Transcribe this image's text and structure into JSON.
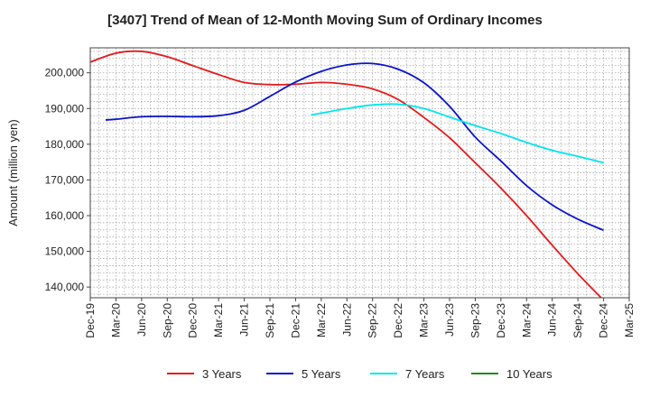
{
  "chart_data": {
    "type": "line",
    "title": "[3407]  Trend of Mean of 12-Month Moving Sum of Ordinary Incomes",
    "xlabel": "",
    "ylabel": "Amount (million yen)",
    "ylim": [
      137000,
      207000
    ],
    "yticks": [
      140000,
      150000,
      160000,
      170000,
      180000,
      190000,
      200000
    ],
    "ytick_labels": [
      "140,000",
      "150,000",
      "160,000",
      "170,000",
      "180,000",
      "190,000",
      "200,000"
    ],
    "x_categories": [
      "Dec-19",
      "Mar-20",
      "Jun-20",
      "Sep-20",
      "Dec-20",
      "Mar-21",
      "Jun-21",
      "Sep-21",
      "Dec-21",
      "Mar-22",
      "Jun-22",
      "Sep-22",
      "Dec-22",
      "Mar-23",
      "Jun-23",
      "Sep-23",
      "Dec-23",
      "Mar-24",
      "Jun-24",
      "Sep-24",
      "Dec-24",
      "Mar-25"
    ],
    "grid": true,
    "legend_position": "bottom",
    "series": [
      {
        "name": "3 Years",
        "color": "#e31a1c",
        "points": [
          [
            0,
            203000
          ],
          [
            1,
            205500
          ],
          [
            2,
            206000
          ],
          [
            3,
            204500
          ],
          [
            4,
            202000
          ],
          [
            5,
            199500
          ],
          [
            6,
            197300
          ],
          [
            7,
            196700
          ],
          [
            8,
            196800
          ],
          [
            9,
            197300
          ],
          [
            10,
            196800
          ],
          [
            11,
            195500
          ],
          [
            12,
            192500
          ],
          [
            13,
            187500
          ],
          [
            14,
            181800
          ],
          [
            15,
            174800
          ],
          [
            16,
            167700
          ],
          [
            17,
            160000
          ],
          [
            18,
            151700
          ],
          [
            19,
            143700
          ],
          [
            20,
            136300
          ]
        ]
      },
      {
        "name": "5 Years",
        "color": "#0a14c8",
        "points": [
          [
            0.6,
            186800
          ],
          [
            1,
            187000
          ],
          [
            2,
            187700
          ],
          [
            3,
            187800
          ],
          [
            4,
            187700
          ],
          [
            5,
            188000
          ],
          [
            6,
            189500
          ],
          [
            7,
            193400
          ],
          [
            8,
            197400
          ],
          [
            9,
            200400
          ],
          [
            10,
            202200
          ],
          [
            11,
            202600
          ],
          [
            12,
            201000
          ],
          [
            13,
            197200
          ],
          [
            14,
            190600
          ],
          [
            15,
            182000
          ],
          [
            16,
            175300
          ],
          [
            17,
            168400
          ],
          [
            18,
            163000
          ],
          [
            19,
            159000
          ],
          [
            20,
            155900
          ]
        ]
      },
      {
        "name": "7 Years",
        "color": "#00e5ee",
        "points": [
          [
            8.6,
            188200
          ],
          [
            9,
            188700
          ],
          [
            10,
            190000
          ],
          [
            11,
            191000
          ],
          [
            12,
            191200
          ],
          [
            13,
            190000
          ],
          [
            14,
            187600
          ],
          [
            15,
            185200
          ],
          [
            16,
            183000
          ],
          [
            17,
            180500
          ],
          [
            18,
            178300
          ],
          [
            19,
            176600
          ],
          [
            20,
            174800
          ]
        ]
      },
      {
        "name": "10 Years",
        "color": "#1e8c1e",
        "points": []
      }
    ]
  }
}
